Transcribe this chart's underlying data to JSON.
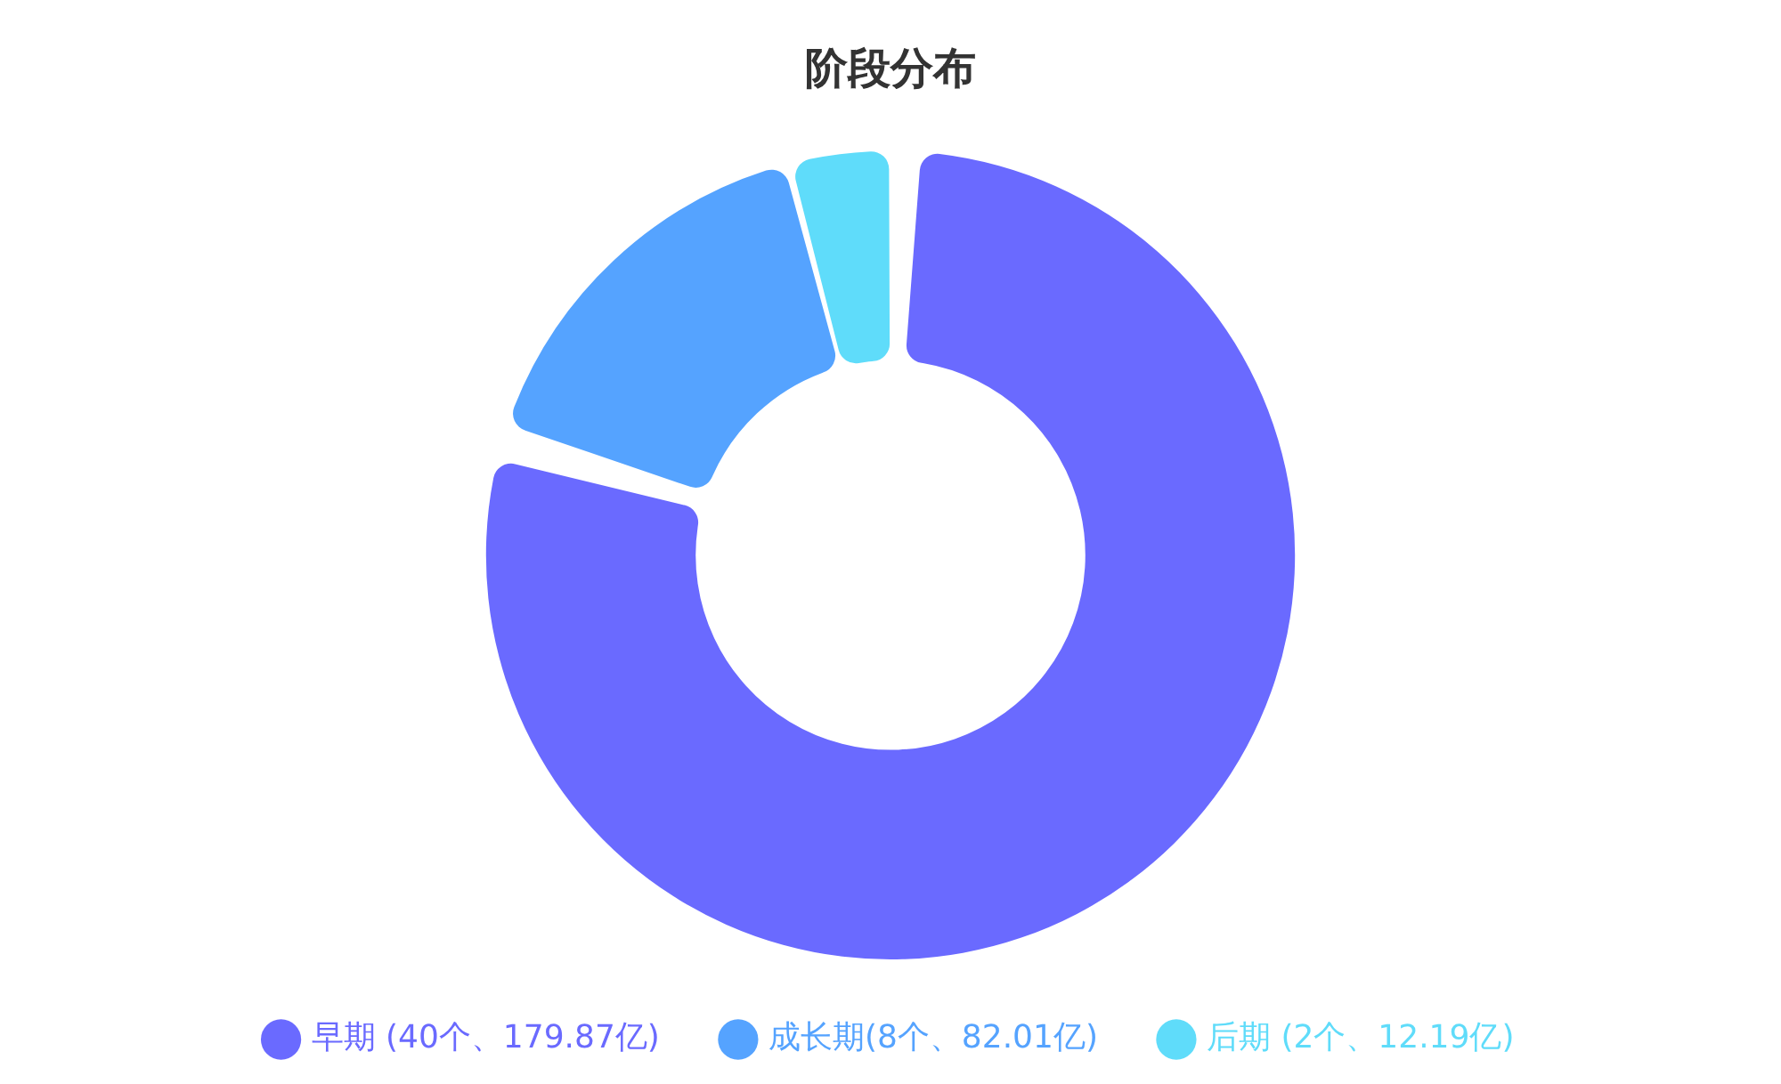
{
  "chart_data": {
    "type": "donut",
    "title": "阶段分布",
    "categories": [
      "早期 (40个、179.87亿)",
      "成长期(8个、82.01亿)",
      "后期 (2个、12.19亿)"
    ],
    "values": [
      40,
      8,
      2
    ],
    "colors": [
      "#6a6aff",
      "#55a3ff",
      "#5fdcfa"
    ],
    "legend": "bottom"
  }
}
